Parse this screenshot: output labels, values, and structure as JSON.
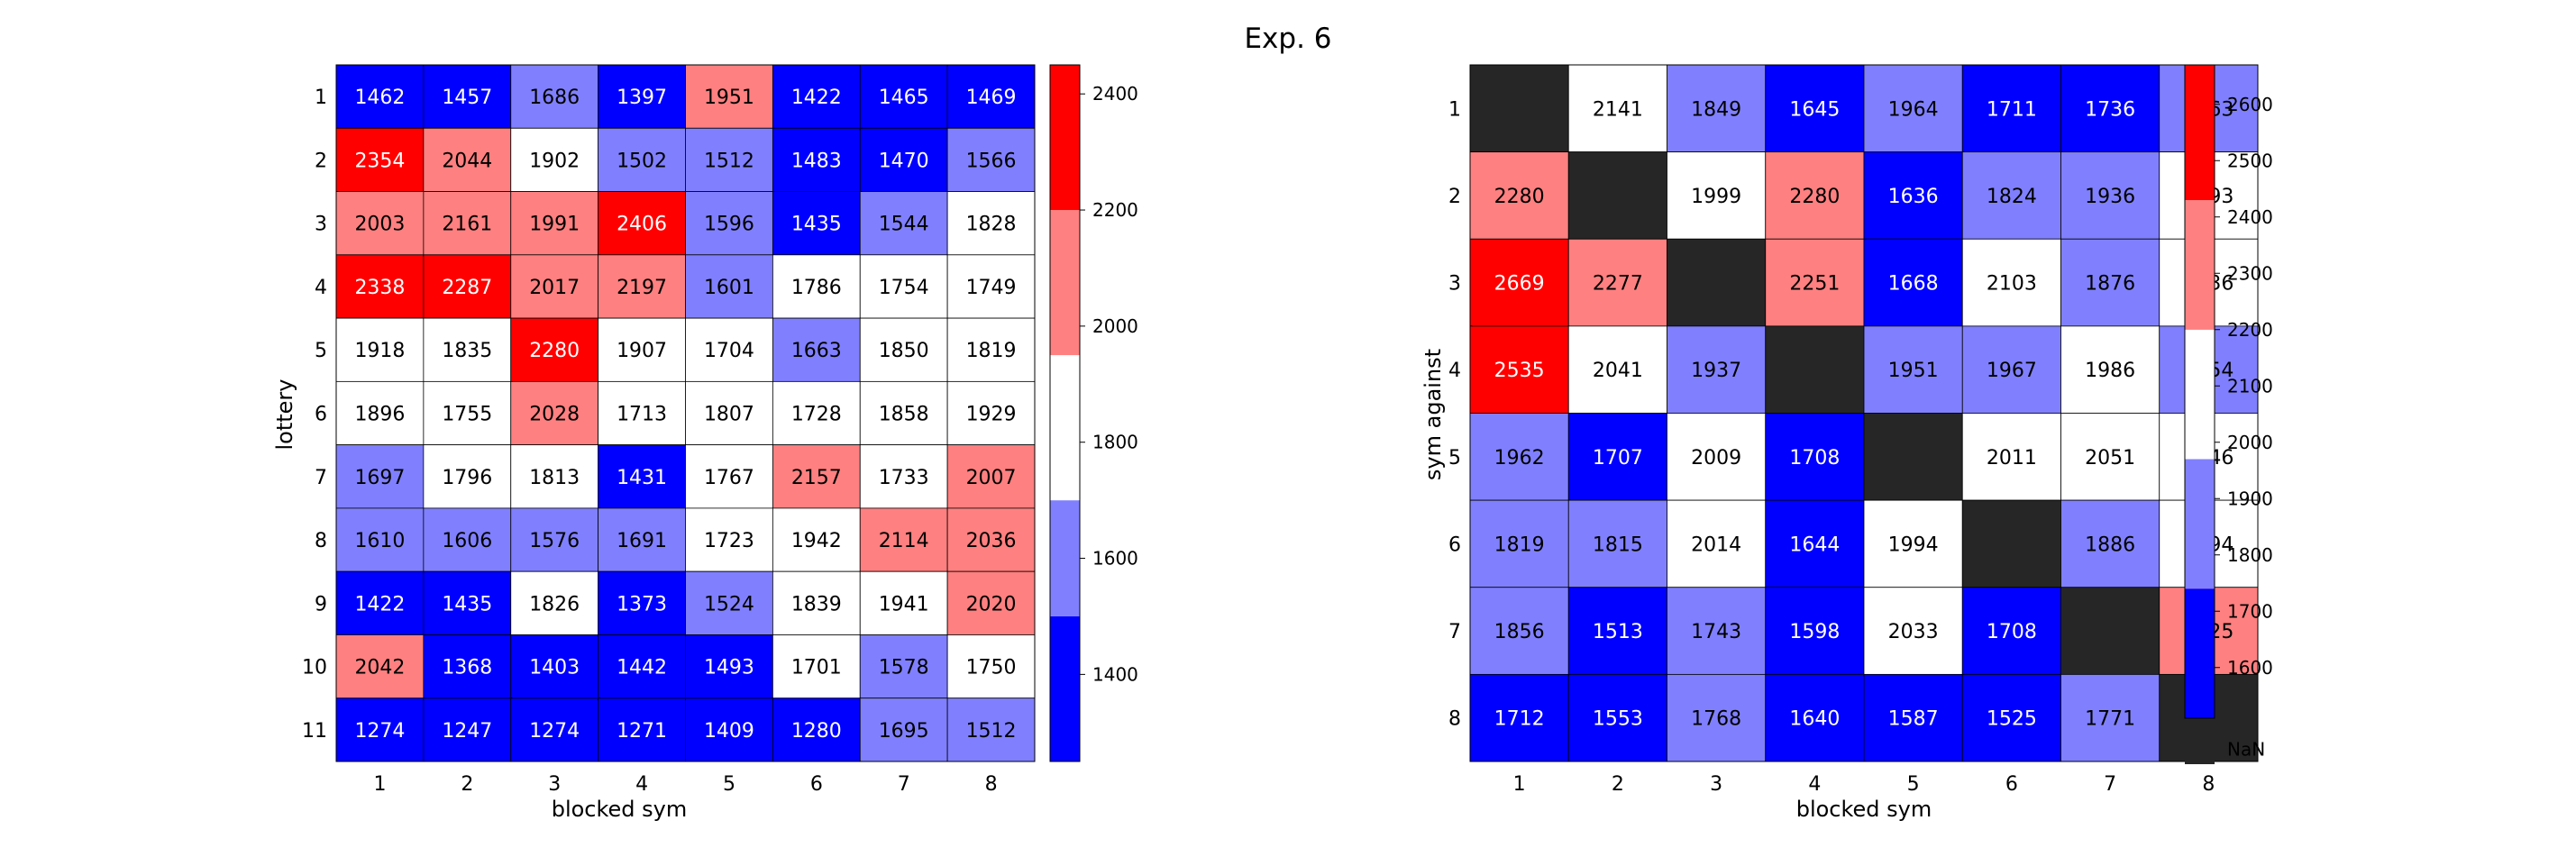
{
  "title": "Exp. 6",
  "colors": {
    "dark_blue": "#0000ff",
    "light_blue": "#8080ff",
    "white": "#ffffff",
    "light_red": "#ff8080",
    "red": "#ff0000",
    "nan": "#262626",
    "grid": "#000000"
  },
  "chart_data": [
    {
      "type": "heatmap",
      "xlabel": "blocked sym",
      "ylabel": "lottery",
      "x_ticks": [
        "1",
        "2",
        "3",
        "4",
        "5",
        "6",
        "7",
        "8"
      ],
      "y_ticks": [
        "1",
        "2",
        "3",
        "4",
        "5",
        "6",
        "7",
        "8",
        "9",
        "10",
        "11"
      ],
      "values": [
        [
          1462,
          1457,
          1686,
          1397,
          1951,
          1422,
          1465,
          1469
        ],
        [
          2354,
          2044,
          1902,
          1502,
          1512,
          1483,
          1470,
          1566
        ],
        [
          2003,
          2161,
          1991,
          2406,
          1596,
          1435,
          1544,
          1828
        ],
        [
          2338,
          2287,
          2017,
          2197,
          1601,
          1786,
          1754,
          1749
        ],
        [
          1918,
          1835,
          2280,
          1907,
          1704,
          1663,
          1850,
          1819
        ],
        [
          1896,
          1755,
          2028,
          1713,
          1807,
          1728,
          1858,
          1929
        ],
        [
          1697,
          1796,
          1813,
          1431,
          1767,
          2157,
          1733,
          2007
        ],
        [
          1610,
          1606,
          1576,
          1691,
          1723,
          1942,
          2114,
          2036
        ],
        [
          1422,
          1435,
          1826,
          1373,
          1524,
          1839,
          1941,
          2020
        ],
        [
          2042,
          1368,
          1403,
          1442,
          1493,
          1701,
          1578,
          1750
        ],
        [
          1274,
          1247,
          1274,
          1271,
          1409,
          1280,
          1695,
          1512
        ]
      ],
      "colorbar": {
        "min": 1250,
        "max": 2450,
        "bounds": [
          1250,
          1500,
          1700,
          1950,
          2200,
          2450
        ],
        "ticks": [
          "1400",
          "1600",
          "1800",
          "2000",
          "2200",
          "2400"
        ],
        "tick_values": [
          1400,
          1600,
          1800,
          2000,
          2200,
          2400
        ]
      }
    },
    {
      "type": "heatmap",
      "xlabel": "blocked sym",
      "ylabel": "sym against",
      "x_ticks": [
        "1",
        "2",
        "3",
        "4",
        "5",
        "6",
        "7",
        "8"
      ],
      "y_ticks": [
        "1",
        "2",
        "3",
        "4",
        "5",
        "6",
        "7",
        "8"
      ],
      "values": [
        [
          null,
          2141,
          1849,
          1645,
          1964,
          1711,
          1736,
          1863
        ],
        [
          2280,
          null,
          1999,
          2280,
          1636,
          1824,
          1936,
          1993
        ],
        [
          2669,
          2277,
          null,
          2251,
          1668,
          2103,
          1876,
          2036
        ],
        [
          2535,
          2041,
          1937,
          null,
          1951,
          1967,
          1986,
          1954
        ],
        [
          1962,
          1707,
          2009,
          1708,
          null,
          2011,
          2051,
          2146
        ],
        [
          1819,
          1815,
          2014,
          1644,
          1994,
          null,
          1886,
          2094
        ],
        [
          1856,
          1513,
          1743,
          1598,
          2033,
          1708,
          null,
          2425
        ],
        [
          1712,
          1553,
          1768,
          1640,
          1587,
          1525,
          1771,
          null
        ]
      ],
      "colorbar": {
        "min": 1510,
        "max": 2670,
        "bounds": [
          1510,
          1740,
          1970,
          2200,
          2430,
          2670
        ],
        "ticks": [
          "1600",
          "1700",
          "1800",
          "1900",
          "2000",
          "2100",
          "2200",
          "2300",
          "2400",
          "2500",
          "2600"
        ],
        "tick_values": [
          1600,
          1700,
          1800,
          1900,
          2000,
          2100,
          2200,
          2300,
          2400,
          2500,
          2600
        ],
        "nan_label": "NaN"
      }
    }
  ]
}
